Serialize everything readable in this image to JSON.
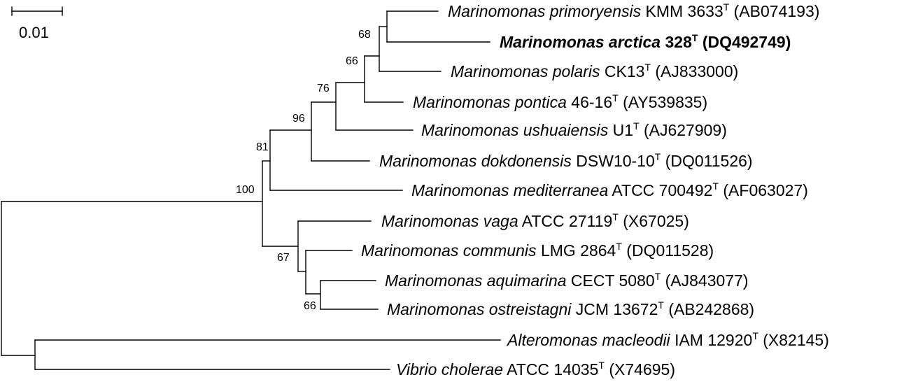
{
  "scale_bar": {
    "label": "0.01"
  },
  "leaves": [
    {
      "genus": "Marinomonas",
      "species": "primoryensis",
      "strain": "KMM 3633",
      "type": "T",
      "accession": "(AB074193)",
      "bold": false
    },
    {
      "genus": "Marinomonas",
      "species": "arctica",
      "strain": "328",
      "type": "T",
      "accession": "(DQ492749)",
      "bold": true
    },
    {
      "genus": "Marinomonas",
      "species": "polaris",
      "strain": "CK13",
      "type": "T",
      "accession": "(AJ833000)",
      "bold": false
    },
    {
      "genus": "Marinomonas",
      "species": "pontica",
      "strain": "46-16",
      "type": "T",
      "accession": "(AY539835)",
      "bold": false
    },
    {
      "genus": "Marinomonas",
      "species": "ushuaiensis",
      "strain": "U1",
      "type": "T",
      "accession": "(AJ627909)",
      "bold": false
    },
    {
      "genus": "Marinomonas",
      "species": "dokdonensis",
      "strain": "DSW10-10",
      "type": "T",
      "accession": "(DQ011526)",
      "bold": false
    },
    {
      "genus": "Marinomonas",
      "species": "mediterranea",
      "strain": "ATCC 700492",
      "type": "T",
      "accession": "(AF063027)",
      "bold": false
    },
    {
      "genus": "Marinomonas",
      "species": "vaga",
      "strain": "ATCC 27119",
      "type": "T",
      "accession": "(X67025)",
      "bold": false
    },
    {
      "genus": "Marinomonas",
      "species": "communis",
      "strain": "LMG 2864",
      "type": "T",
      "accession": "(DQ011528)",
      "bold": false
    },
    {
      "genus": "Marinomonas",
      "species": "aquimarina",
      "strain": "CECT 5080",
      "type": "T",
      "accession": "(AJ843077)",
      "bold": false
    },
    {
      "genus": "Marinomonas",
      "species": "ostreistagni",
      "strain": "JCM 13672",
      "type": "T",
      "accession": "(AB242868)",
      "bold": false
    },
    {
      "genus": "Alteromonas",
      "species": "macleodii",
      "strain": "IAM 12920",
      "type": "T",
      "accession": "(X82145)",
      "bold": false
    },
    {
      "genus": "Vibrio",
      "species": "cholerae",
      "strain": "ATCC 14035",
      "type": "T",
      "accession": "(X74695)",
      "bold": false
    }
  ],
  "bootstrap_values": [
    "68",
    "66",
    "76",
    "96",
    "81",
    "100",
    "67",
    "66"
  ]
}
